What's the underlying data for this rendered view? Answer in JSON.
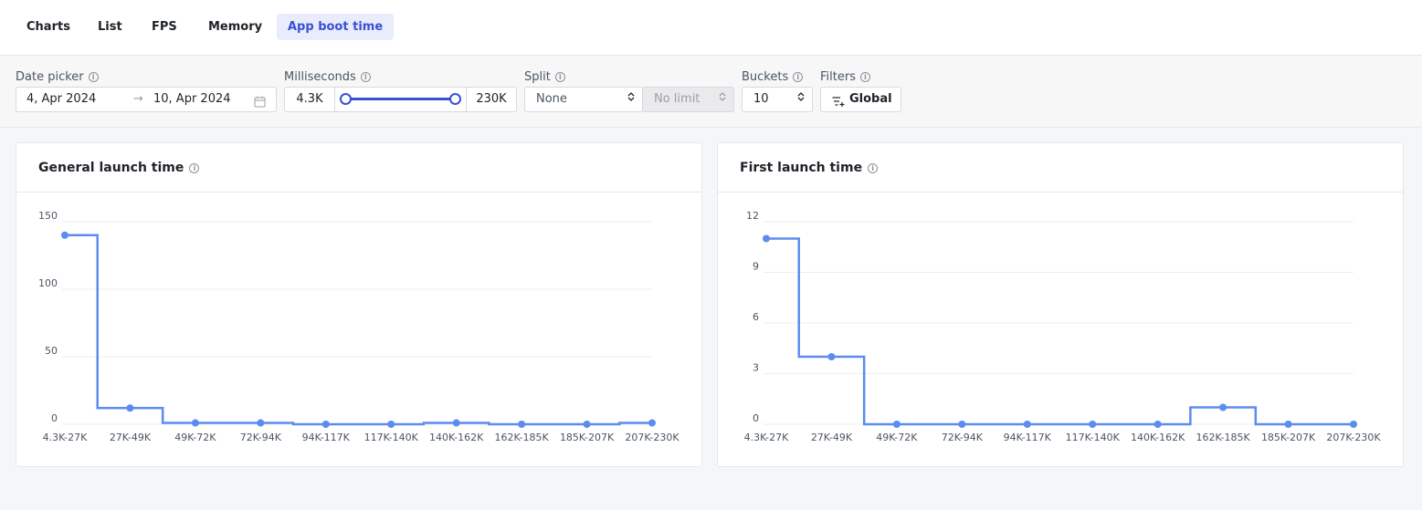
{
  "tabs": [
    {
      "label": "Charts",
      "active": false
    },
    {
      "label": "List",
      "active": false
    },
    {
      "label": "FPS",
      "active": false
    },
    {
      "label": "Memory",
      "active": false
    },
    {
      "label": "App boot time",
      "active": true
    }
  ],
  "filters": {
    "date_picker": {
      "label": "Date picker",
      "start": "4, Apr 2024",
      "end": "10, Apr 2024",
      "arrow": "→",
      "icon": "calendar-icon"
    },
    "milliseconds": {
      "label": "Milliseconds",
      "min": "4.3K",
      "max": "230K",
      "range_low_fraction": 0.0,
      "range_high_fraction": 1.0
    },
    "split": {
      "label": "Split",
      "value": "None",
      "limit": "No limit"
    },
    "buckets": {
      "label": "Buckets",
      "value": "10"
    },
    "filters": {
      "label": "Filters",
      "button": "Global",
      "icon": "filter-add-icon"
    }
  },
  "info_glyph": "i",
  "colors": {
    "accent": "#3a50d4",
    "series": "#5b8def",
    "active_tab_bg": "#e8ecfb"
  },
  "chart_data": [
    {
      "type": "line",
      "step": "center",
      "title": "General launch time",
      "categories": [
        "4.3K-27K",
        "27K-49K",
        "49K-72K",
        "72K-94K",
        "94K-117K",
        "117K-140K",
        "140K-162K",
        "162K-185K",
        "185K-207K",
        "207K-230K"
      ],
      "values": [
        140,
        12,
        1,
        1,
        0,
        0,
        1,
        0,
        0,
        1
      ],
      "yticks": [
        "0",
        "50",
        "100",
        "150"
      ],
      "ylim": [
        0,
        150
      ],
      "grid": true
    },
    {
      "type": "line",
      "step": "center",
      "title": "First launch time",
      "categories": [
        "4.3K-27K",
        "27K-49K",
        "49K-72K",
        "72K-94K",
        "94K-117K",
        "117K-140K",
        "140K-162K",
        "162K-185K",
        "185K-207K",
        "207K-230K"
      ],
      "values": [
        11,
        4,
        0,
        0,
        0,
        0,
        0,
        1,
        0,
        0
      ],
      "yticks": [
        "0",
        "3",
        "6",
        "9",
        "12"
      ],
      "ylim": [
        0,
        12
      ],
      "grid": true
    }
  ]
}
